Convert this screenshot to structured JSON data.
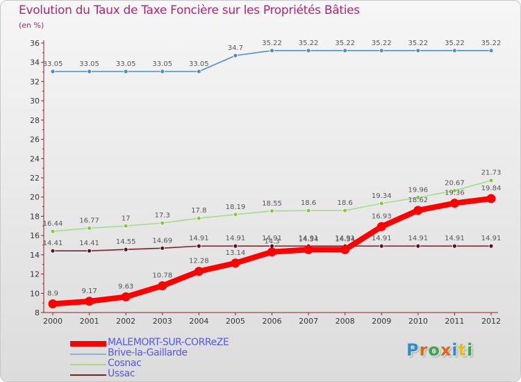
{
  "title": "Evolution du Taux de Taxe Foncière sur les Propriétés Bâties",
  "unit": "(en %)",
  "logo": {
    "text": "Proxiti",
    "colors": [
      "#2a8fd6",
      "#e9620f",
      "#35a84a",
      "#e9620f",
      "#2a8fd6",
      "#f0b90b",
      "#35a84a"
    ]
  },
  "chart_data": {
    "type": "line",
    "x": [
      2000,
      2001,
      2002,
      2003,
      2004,
      2005,
      2006,
      2007,
      2008,
      2009,
      2010,
      2011,
      2012
    ],
    "ylim": [
      8,
      36
    ],
    "yticks": [
      8,
      10,
      12,
      14,
      16,
      18,
      20,
      22,
      24,
      26,
      28,
      30,
      32,
      34,
      36
    ],
    "grid": false,
    "legend_position": "bottom-left",
    "series": [
      {
        "name": "Brive-la-Gaillarde",
        "color": "#4c8ec9",
        "dot": "#4c8ec9",
        "values": [
          33.05,
          33.05,
          33.05,
          33.05,
          33.05,
          34.7,
          35.22,
          35.22,
          35.22,
          35.22,
          35.22,
          35.22,
          35.22
        ],
        "labels": [
          "33.05",
          "33.05",
          "33.05",
          "33.05",
          "33.05",
          "34.7",
          "35.22",
          "35.22",
          "35.22",
          "35.22",
          "35.22",
          "35.22",
          "35.22"
        ]
      },
      {
        "name": "Cosnac",
        "color": "#a6dc86",
        "dot": "#7fcb3f",
        "values": [
          16.44,
          16.77,
          17,
          17.3,
          17.8,
          18.19,
          18.55,
          18.6,
          18.6,
          19.34,
          19.96,
          20.67,
          21.73
        ],
        "labels": [
          "16.44",
          "16.77",
          "17",
          "17.3",
          "17.8",
          "18.19",
          "18.55",
          "18.6",
          "18.6",
          "19.34",
          "19.96",
          "20.67",
          "21.73"
        ]
      },
      {
        "name": "Ussac",
        "color": "#7b1f24",
        "dot": "#5a1418",
        "values": [
          14.41,
          14.41,
          14.55,
          14.69,
          14.91,
          14.91,
          14.91,
          14.91,
          14.91,
          14.91,
          14.91,
          14.91,
          14.91
        ],
        "labels": [
          "14.41",
          "14.41",
          "14.55",
          "14.69",
          "14.91",
          "14.91",
          "14.91",
          "14.91",
          "14.91",
          "14.91",
          "14.91",
          "14.91",
          "14.91"
        ]
      },
      {
        "name": "MALEMORT-SUR-CORREZE",
        "color": "#ff0000",
        "dot": "#ff0000",
        "bold": true,
        "values": [
          8.9,
          9.17,
          9.63,
          10.78,
          12.28,
          13.14,
          14.3,
          14.54,
          14.54,
          16.93,
          18.62,
          19.36,
          19.84
        ],
        "labels": [
          "8.9",
          "9.17",
          "9.63",
          "10.78",
          "12.28",
          "13.14",
          "14.3",
          "14.54",
          "14.54",
          "16.93",
          "18.62",
          "19.36",
          "19.84"
        ]
      }
    ],
    "legend": [
      {
        "name": "MALEMORT-SUR-CORReZE",
        "color": "#ff0000",
        "bold": true
      },
      {
        "name": "Brive-la-Gaillarde",
        "color": "#88b4dc"
      },
      {
        "name": "Cosnac",
        "color": "#a6dc86"
      },
      {
        "name": "Ussac",
        "color": "#7b1f24"
      }
    ]
  }
}
